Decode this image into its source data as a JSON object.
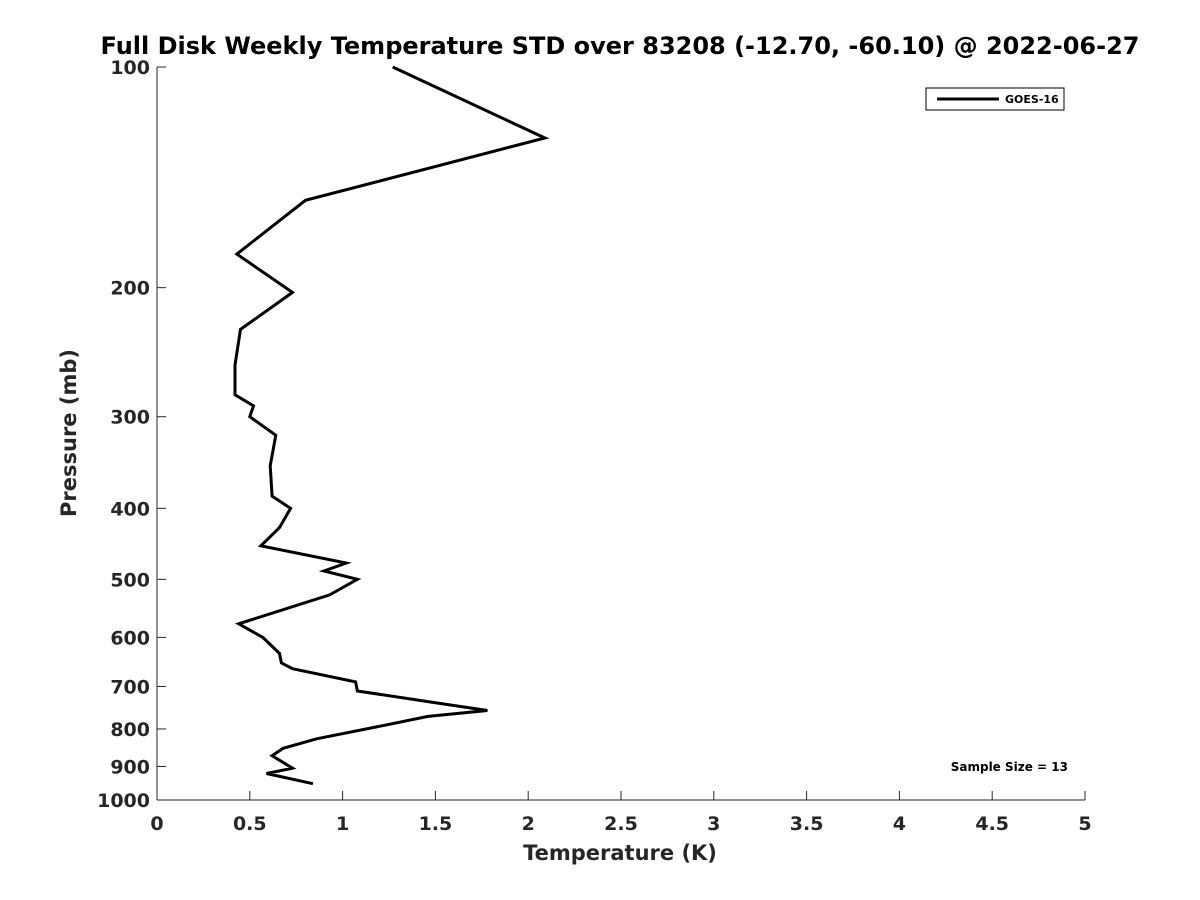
{
  "chart_data": {
    "type": "line",
    "title": "Full Disk Weekly Temperature STD over 83208 (-12.70, -60.10) @ 2022-06-27",
    "xlabel": "Temperature (K)",
    "ylabel": "Pressure (mb)",
    "xlim": [
      0,
      5
    ],
    "ylim": [
      100,
      1000
    ],
    "y_scale": "log",
    "y_reversed": true,
    "grid": false,
    "legend_position": "top-right",
    "line_color": "#000000",
    "x_ticks": [
      {
        "value": 0,
        "label": "0"
      },
      {
        "value": 0.5,
        "label": "0.5"
      },
      {
        "value": 1,
        "label": "1"
      },
      {
        "value": 1.5,
        "label": "1.5"
      },
      {
        "value": 2,
        "label": "2"
      },
      {
        "value": 2.5,
        "label": "2.5"
      },
      {
        "value": 3,
        "label": "3"
      },
      {
        "value": 3.5,
        "label": "3.5"
      },
      {
        "value": 4,
        "label": "4"
      },
      {
        "value": 4.5,
        "label": "4.5"
      },
      {
        "value": 5,
        "label": "5"
      }
    ],
    "y_ticks": [
      {
        "value": 100,
        "label": "100"
      },
      {
        "value": 200,
        "label": "200"
      },
      {
        "value": 300,
        "label": "300"
      },
      {
        "value": 400,
        "label": "400"
      },
      {
        "value": 500,
        "label": "500"
      },
      {
        "value": 600,
        "label": "600"
      },
      {
        "value": 700,
        "label": "700"
      },
      {
        "value": 800,
        "label": "800"
      },
      {
        "value": 900,
        "label": "900"
      },
      {
        "value": 1000,
        "label": "1000"
      }
    ],
    "series": [
      {
        "name": "GOES-16",
        "points": [
          {
            "x": 1.27,
            "p": 100
          },
          {
            "x": 2.09,
            "p": 125
          },
          {
            "x": 0.8,
            "p": 152
          },
          {
            "x": 0.43,
            "p": 180
          },
          {
            "x": 0.73,
            "p": 203
          },
          {
            "x": 0.45,
            "p": 228
          },
          {
            "x": 0.42,
            "p": 255
          },
          {
            "x": 0.42,
            "p": 280
          },
          {
            "x": 0.52,
            "p": 290
          },
          {
            "x": 0.5,
            "p": 300
          },
          {
            "x": 0.64,
            "p": 318
          },
          {
            "x": 0.61,
            "p": 350
          },
          {
            "x": 0.62,
            "p": 385
          },
          {
            "x": 0.72,
            "p": 400
          },
          {
            "x": 0.66,
            "p": 425
          },
          {
            "x": 0.56,
            "p": 450
          },
          {
            "x": 1.02,
            "p": 475
          },
          {
            "x": 0.9,
            "p": 487
          },
          {
            "x": 1.08,
            "p": 500
          },
          {
            "x": 0.93,
            "p": 525
          },
          {
            "x": 0.44,
            "p": 575
          },
          {
            "x": 0.57,
            "p": 600
          },
          {
            "x": 0.66,
            "p": 631
          },
          {
            "x": 0.67,
            "p": 650
          },
          {
            "x": 0.73,
            "p": 662
          },
          {
            "x": 1.07,
            "p": 690
          },
          {
            "x": 1.08,
            "p": 710
          },
          {
            "x": 1.46,
            "p": 734
          },
          {
            "x": 1.78,
            "p": 755
          },
          {
            "x": 1.46,
            "p": 769
          },
          {
            "x": 1.18,
            "p": 795
          },
          {
            "x": 0.86,
            "p": 825
          },
          {
            "x": 0.68,
            "p": 850
          },
          {
            "x": 0.62,
            "p": 870
          },
          {
            "x": 0.73,
            "p": 905
          },
          {
            "x": 0.59,
            "p": 920
          },
          {
            "x": 0.84,
            "p": 950
          }
        ]
      }
    ],
    "annotations": [
      {
        "text": "Sample Size = 13",
        "position": "bottom-right"
      }
    ]
  }
}
